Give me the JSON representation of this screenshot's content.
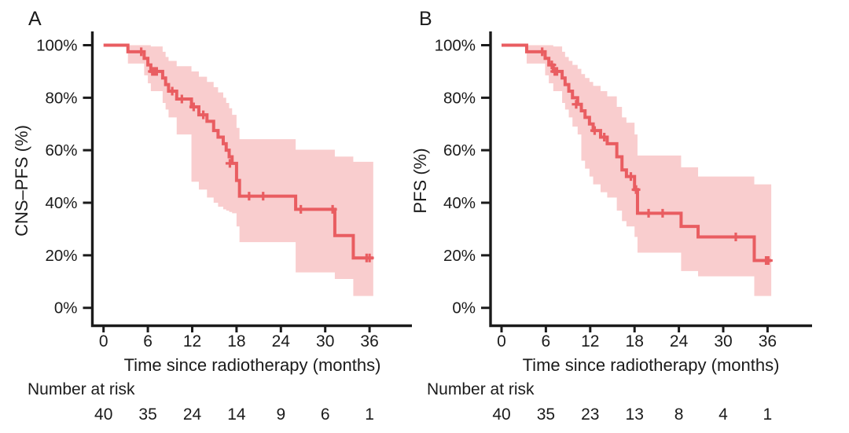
{
  "figure": {
    "background": "#ffffff"
  },
  "colors": {
    "curve": "#e95d61",
    "band": "#f9cdce",
    "axis": "#1b1b1b",
    "text": "#1b1b1b"
  },
  "panels": [
    {
      "label": "A",
      "ylabel": "CNS–PFS (%)",
      "xlabel": "Time since radiotherapy (months)",
      "at_risk_label": "Number at risk"
    },
    {
      "label": "B",
      "ylabel": "PFS (%)",
      "xlabel": "Time since radiotherapy (months)",
      "at_risk_label": "Number at risk"
    }
  ],
  "chart_data": [
    {
      "type": "line",
      "subtype": "kaplan-meier-step-with-ci-band",
      "panel": "A",
      "title": "",
      "xlabel": "Time since radiotherapy (months)",
      "ylabel": "CNS–PFS (%)",
      "xlim": [
        0,
        42
      ],
      "ylim": [
        0,
        100
      ],
      "grid": false,
      "legend": false,
      "x_ticks": [
        0,
        6,
        12,
        18,
        24,
        30,
        36
      ],
      "y_ticks": [
        {
          "label": "0%",
          "value": 0
        },
        {
          "label": "20%",
          "value": 20
        },
        {
          "label": "40%",
          "value": 40
        },
        {
          "label": "60%",
          "value": 60
        },
        {
          "label": "80%",
          "value": 80
        },
        {
          "label": "100%",
          "value": 100
        }
      ],
      "end_time": 36.5,
      "steps": [
        [
          0,
          100,
          100,
          100
        ],
        [
          3.3,
          97.5,
          93,
          100
        ],
        [
          5.5,
          95,
          88.5,
          100
        ],
        [
          6.0,
          92.5,
          85.5,
          100
        ],
        [
          6.4,
          90,
          82.5,
          99.5
        ],
        [
          8.0,
          87.5,
          78,
          97.5
        ],
        [
          8.4,
          85,
          75.5,
          95.5
        ],
        [
          8.8,
          82.5,
          72.5,
          94
        ],
        [
          9.9,
          79.5,
          66,
          92
        ],
        [
          11.9,
          76.5,
          48,
          90
        ],
        [
          12.9,
          73.5,
          45,
          88
        ],
        [
          14.0,
          71,
          42,
          86
        ],
        [
          14.9,
          67.5,
          40,
          84
        ],
        [
          15.5,
          65,
          38.5,
          82
        ],
        [
          16.2,
          62.5,
          37.5,
          80
        ],
        [
          16.6,
          60,
          37,
          78
        ],
        [
          17.0,
          57.5,
          36.5,
          76
        ],
        [
          17.4,
          55,
          36,
          73.5
        ],
        [
          18.0,
          48.5,
          31,
          68.5
        ],
        [
          18.4,
          42.5,
          25,
          64.2
        ],
        [
          26.0,
          37.5,
          13.5,
          60.2
        ],
        [
          31.3,
          27.5,
          11,
          57.6
        ],
        [
          33.8,
          19,
          4.5,
          55.6
        ]
      ],
      "censors": [
        [
          5.1,
          97.5
        ],
        [
          6.6,
          90
        ],
        [
          6.9,
          90
        ],
        [
          7.2,
          90
        ],
        [
          9.3,
          82.5
        ],
        [
          10.6,
          79.5
        ],
        [
          12.2,
          76.5
        ],
        [
          13.5,
          73.5
        ],
        [
          17.1,
          55
        ],
        [
          19.7,
          42.5
        ],
        [
          21.6,
          42.5
        ],
        [
          26.7,
          37.5
        ],
        [
          31.0,
          37.5
        ],
        [
          35.6,
          19
        ],
        [
          36.0,
          19
        ]
      ],
      "number_at_risk": {
        "times": [
          0,
          6,
          12,
          18,
          24,
          30,
          36
        ],
        "values": [
          40,
          35,
          24,
          14,
          9,
          6,
          1
        ]
      }
    },
    {
      "type": "line",
      "subtype": "kaplan-meier-step-with-ci-band",
      "panel": "B",
      "title": "",
      "xlabel": "Time since radiotherapy (months)",
      "ylabel": "PFS (%)",
      "xlim": [
        0,
        42
      ],
      "ylim": [
        0,
        100
      ],
      "grid": false,
      "legend": false,
      "x_ticks": [
        0,
        6,
        12,
        18,
        24,
        30,
        36
      ],
      "y_ticks": [
        {
          "label": "0%",
          "value": 0
        },
        {
          "label": "20%",
          "value": 20
        },
        {
          "label": "40%",
          "value": 40
        },
        {
          "label": "60%",
          "value": 60
        },
        {
          "label": "80%",
          "value": 80
        },
        {
          "label": "100%",
          "value": 100
        }
      ],
      "end_time": 36.5,
      "steps": [
        [
          0,
          100,
          100,
          100
        ],
        [
          3.4,
          97.5,
          93,
          100
        ],
        [
          5.9,
          95,
          88.5,
          100
        ],
        [
          6.4,
          92.5,
          85.5,
          100
        ],
        [
          7.0,
          90,
          82.5,
          99.5
        ],
        [
          8.2,
          87.5,
          78,
          97.5
        ],
        [
          8.6,
          85,
          75.5,
          95.5
        ],
        [
          9.1,
          82.5,
          72.5,
          94
        ],
        [
          9.6,
          80,
          69,
          92.5
        ],
        [
          10.3,
          77.5,
          66,
          91
        ],
        [
          10.8,
          75,
          56,
          89
        ],
        [
          11.3,
          72.5,
          53,
          87.5
        ],
        [
          11.9,
          70,
          50,
          86
        ],
        [
          12.4,
          67.5,
          47,
          84.5
        ],
        [
          13.4,
          65,
          44,
          82.5
        ],
        [
          14.3,
          62.5,
          42,
          80.5
        ],
        [
          15.6,
          57.5,
          37,
          76.5
        ],
        [
          16.3,
          52.5,
          33,
          72.5
        ],
        [
          16.9,
          50,
          31,
          70.5
        ],
        [
          18.0,
          45,
          27,
          66
        ],
        [
          18.4,
          36,
          21,
          58
        ],
        [
          24.3,
          31,
          14,
          53.5
        ],
        [
          26.6,
          27,
          12,
          50
        ],
        [
          34.2,
          18,
          4.5,
          47
        ]
      ],
      "censors": [
        [
          5.5,
          97.5
        ],
        [
          6.8,
          92.5
        ],
        [
          7.2,
          90
        ],
        [
          7.5,
          90
        ],
        [
          10.1,
          77.5
        ],
        [
          12.6,
          67.5
        ],
        [
          13.9,
          65
        ],
        [
          17.5,
          50
        ],
        [
          18.2,
          45
        ],
        [
          19.9,
          36
        ],
        [
          21.8,
          36
        ],
        [
          31.7,
          27
        ],
        [
          35.8,
          18
        ],
        [
          36.1,
          18
        ]
      ],
      "number_at_risk": {
        "times": [
          0,
          6,
          12,
          18,
          24,
          30,
          36
        ],
        "values": [
          40,
          35,
          23,
          13,
          8,
          4,
          1
        ]
      }
    }
  ]
}
